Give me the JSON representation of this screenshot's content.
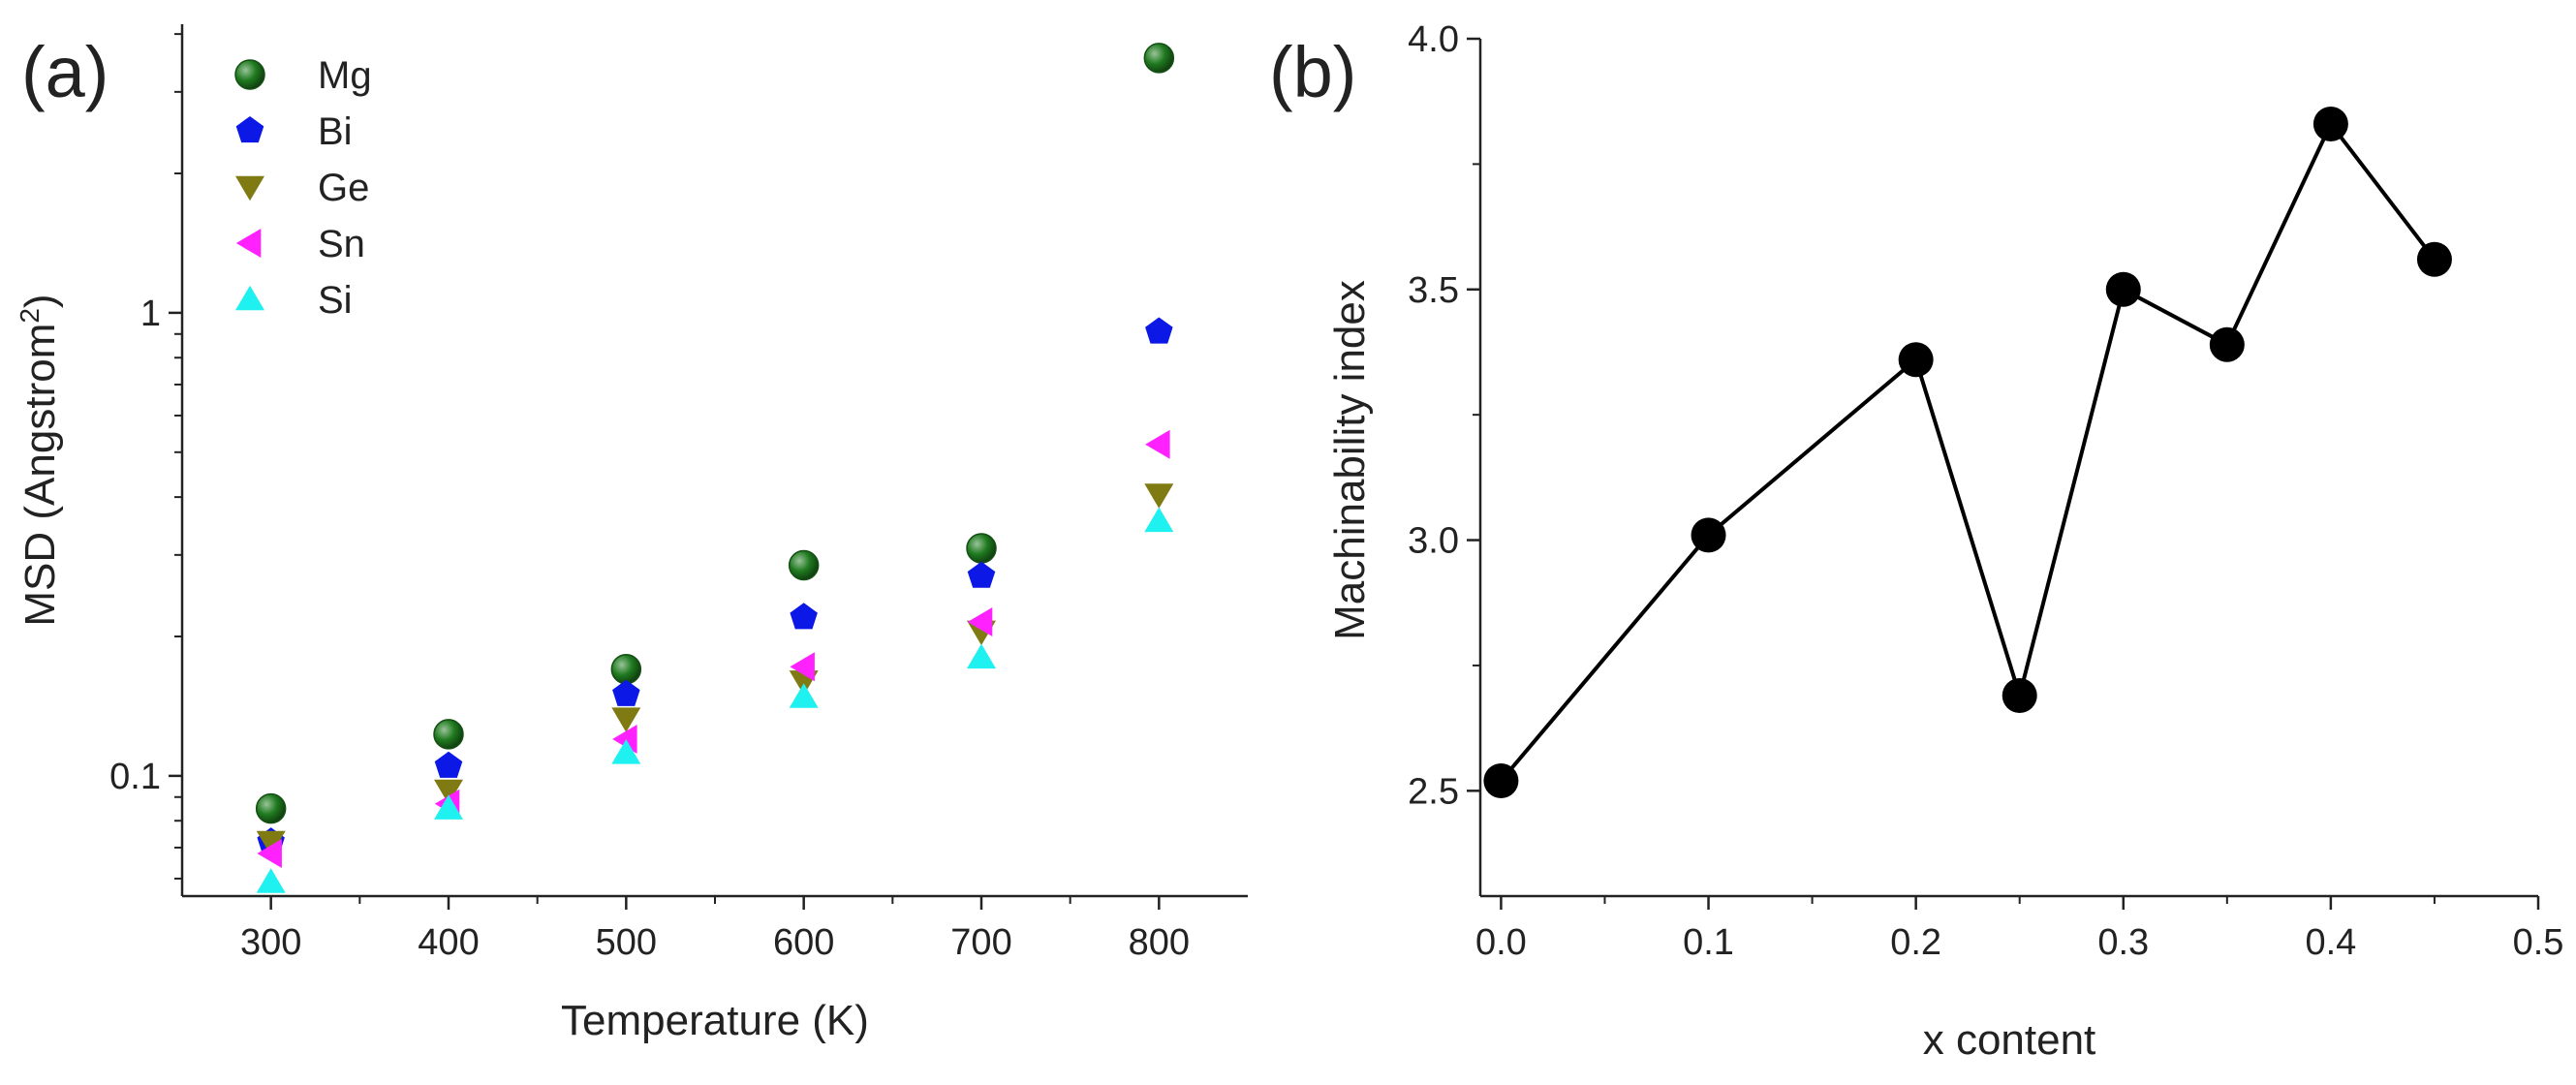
{
  "chart_data": [
    {
      "panel_label": "(a)",
      "type": "scatter",
      "xlabel": "Temperature (K)",
      "ylabel": "MSD (Angstrom",
      "ylabel_sup": "2",
      "ylabel_end": ")",
      "x": [
        300,
        400,
        500,
        600,
        700,
        800
      ],
      "xlim": [
        250,
        850
      ],
      "ylim": [
        0.055,
        4.2
      ],
      "yscale": "log",
      "xticks": [
        300,
        400,
        500,
        600,
        700,
        800
      ],
      "yticks": [
        0.1,
        1
      ],
      "ytick_labels": [
        "0.1",
        "1"
      ],
      "grid": false,
      "legend_placement": "top-left",
      "series": [
        {
          "name": "Mg",
          "marker": "sphere",
          "color": "#1f7a1f",
          "values": [
            0.085,
            0.123,
            0.17,
            0.285,
            0.31,
            3.55
          ]
        },
        {
          "name": "Bi",
          "marker": "pentagon",
          "color": "#0b18e6",
          "values": [
            0.072,
            0.105,
            0.15,
            0.22,
            0.27,
            0.91
          ]
        },
        {
          "name": "Ge",
          "marker": "triangle-down",
          "color": "#7f7a12",
          "values": [
            0.072,
            0.093,
            0.133,
            0.16,
            0.205,
            0.405
          ]
        },
        {
          "name": "Sn",
          "marker": "triangle-left",
          "color": "#ff22ff",
          "values": [
            0.068,
            0.087,
            0.12,
            0.172,
            0.215,
            0.52
          ]
        },
        {
          "name": "Si",
          "marker": "triangle-up",
          "color": "#1ff0f0",
          "values": [
            0.059,
            0.085,
            0.112,
            0.148,
            0.18,
            0.355
          ]
        }
      ]
    },
    {
      "panel_label": "(b)",
      "type": "line",
      "xlabel": "x content",
      "ylabel": "Machinability index",
      "x": [
        0.0,
        0.1,
        0.2,
        0.25,
        0.3,
        0.35,
        0.4,
        0.45
      ],
      "xlim": [
        -0.01,
        0.5
      ],
      "ylim": [
        2.29,
        4.0
      ],
      "xticks": [
        0.0,
        0.1,
        0.2,
        0.3,
        0.4,
        0.5
      ],
      "xtick_labels": [
        "0.0",
        "0.1",
        "0.2",
        "0.3",
        "0.4",
        "0.5"
      ],
      "yticks": [
        2.5,
        3.0,
        3.5,
        4.0
      ],
      "ytick_labels": [
        "2.5",
        "3.0",
        "3.5",
        "4.0"
      ],
      "grid": false,
      "series": [
        {
          "color": "#000000",
          "marker": "circle",
          "values": [
            2.52,
            3.01,
            3.36,
            2.69,
            3.5,
            3.39,
            3.83,
            3.56
          ]
        }
      ]
    }
  ]
}
